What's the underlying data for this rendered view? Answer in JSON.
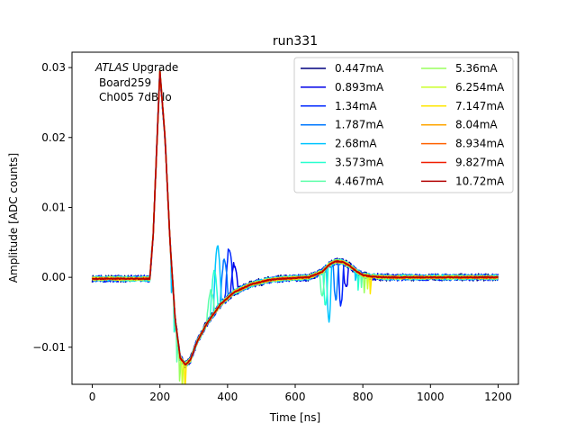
{
  "chart_data": {
    "type": "line",
    "title": "run331",
    "xlabel": "Time [ns]",
    "ylabel": "Amplitude [ADC counts]",
    "xlim": [
      -60,
      1260
    ],
    "ylim": [
      -0.0153,
      0.0322
    ],
    "xticks": [
      0,
      200,
      400,
      600,
      800,
      1000,
      1200
    ],
    "yticks": [
      -0.01,
      0.0,
      0.01,
      0.02,
      0.03
    ],
    "xtick_labels": [
      "0",
      "200",
      "400",
      "600",
      "800",
      "1000",
      "1200"
    ],
    "ytick_labels": [
      "−0.01",
      "0.00",
      "0.01",
      "0.02",
      "0.03"
    ],
    "grid": false,
    "legend_position": "top-right",
    "legend_columns": 2,
    "annotation": {
      "line1_italic": "ATLAS",
      "line1_rest": " Upgrade",
      "line2": "Board259",
      "line3": "Ch005 7dB lo"
    },
    "pulse_shape": {
      "description_points_x": [
        0,
        170,
        180,
        200,
        215,
        230,
        245,
        260,
        275,
        290,
        310,
        340,
        380,
        420,
        470,
        520,
        560,
        600,
        640,
        680,
        700,
        720,
        740,
        760,
        780,
        800,
        830,
        870,
        920,
        1000,
        1200
      ],
      "description_points_y": [
        -0.0002,
        -0.0002,
        0.006,
        0.0295,
        0.02,
        0.005,
        -0.006,
        -0.0115,
        -0.0125,
        -0.0118,
        -0.0092,
        -0.0065,
        -0.0038,
        -0.0021,
        -0.001,
        -0.0004,
        -0.0002,
        -0.0001,
        0.0,
        0.0008,
        0.0018,
        0.0023,
        0.0022,
        0.0017,
        0.0009,
        0.0003,
        0.0001,
        0.0,
        0.0,
        0.0,
        0.0
      ]
    },
    "series": [
      {
        "name": "0.447mA",
        "color": "#00007f",
        "glitch_x": 420,
        "glitch_amp": 0.0
      },
      {
        "name": "0.893mA",
        "color": "#0000e8",
        "glitch_x": 420,
        "glitch_amp": 0.004
      },
      {
        "name": "1.34mA",
        "color": "#0028ff",
        "glitch_x": 405,
        "glitch_amp": 0.007
      },
      {
        "name": "1.787mA",
        "color": "#0078ff",
        "glitch_x": 390,
        "glitch_amp": 0.006
      },
      {
        "name": "2.68mA",
        "color": "#00c4ff",
        "glitch_x": 370,
        "glitch_amp": 0.009
      },
      {
        "name": "3.573mA",
        "color": "#27ffcf",
        "glitch_x": 360,
        "glitch_amp": 0.006
      },
      {
        "name": "4.467mA",
        "color": "#5cffa9",
        "glitch_x": 350,
        "glitch_amp": 0.004
      },
      {
        "name": "5.36mA",
        "color": "#98ff5d",
        "glitch_x": 340,
        "glitch_amp": 0.0
      },
      {
        "name": "6.254mA",
        "color": "#cbff2a",
        "glitch_x": 330,
        "glitch_amp": 0.0
      },
      {
        "name": "7.147mA",
        "color": "#ffe600",
        "glitch_x": 320,
        "glitch_amp": 0.0
      },
      {
        "name": "8.04mA",
        "color": "#ffa600",
        "glitch_x": 310,
        "glitch_amp": 0.0
      },
      {
        "name": "8.934mA",
        "color": "#ff6200",
        "glitch_x": 300,
        "glitch_amp": 0.0
      },
      {
        "name": "9.827mA",
        "color": "#f01d00",
        "glitch_x": 290,
        "glitch_amp": 0.0
      },
      {
        "name": "10.72mA",
        "color": "#b20000",
        "glitch_x": 280,
        "glitch_amp": 0.0
      }
    ]
  }
}
